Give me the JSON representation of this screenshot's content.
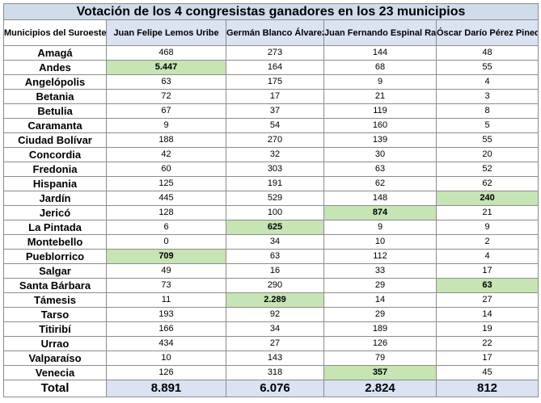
{
  "title": "Votación de los 4 congresistas ganadores en los 23 municipios",
  "header": {
    "municipio_label": "Municipios del Suroeste",
    "candidates": [
      "Juan Felipe Lemos Uribe",
      "Germán Blanco Álvarez",
      "Juan Fernando Espinal Ramírez",
      "Óscar Darío Pérez Pineda"
    ]
  },
  "highlight_color": "#c6e4b4",
  "rows": [
    {
      "municipio": "Amagá",
      "values": [
        "468",
        "273",
        "144",
        "48"
      ],
      "highlight": null
    },
    {
      "municipio": "Andes",
      "values": [
        "5.447",
        "164",
        "68",
        "55"
      ],
      "highlight": 0
    },
    {
      "municipio": "Angelópolis",
      "values": [
        "63",
        "175",
        "9",
        "4"
      ],
      "highlight": null
    },
    {
      "municipio": "Betania",
      "values": [
        "72",
        "17",
        "21",
        "3"
      ],
      "highlight": null
    },
    {
      "municipio": "Betulia",
      "values": [
        "67",
        "37",
        "119",
        "8"
      ],
      "highlight": null
    },
    {
      "municipio": "Caramanta",
      "values": [
        "9",
        "54",
        "160",
        "5"
      ],
      "highlight": null
    },
    {
      "municipio": "Ciudad Bolívar",
      "values": [
        "188",
        "270",
        "139",
        "55"
      ],
      "highlight": null
    },
    {
      "municipio": "Concordia",
      "values": [
        "42",
        "32",
        "30",
        "20"
      ],
      "highlight": null
    },
    {
      "municipio": "Fredonia",
      "values": [
        "60",
        "303",
        "63",
        "52"
      ],
      "highlight": null
    },
    {
      "municipio": "Hispania",
      "values": [
        "125",
        "191",
        "62",
        "62"
      ],
      "highlight": null
    },
    {
      "municipio": "Jardín",
      "values": [
        "445",
        "529",
        "148",
        "240"
      ],
      "highlight": 3
    },
    {
      "municipio": "Jericó",
      "values": [
        "128",
        "100",
        "874",
        "21"
      ],
      "highlight": 2
    },
    {
      "municipio": "La Pintada",
      "values": [
        "6",
        "625",
        "9",
        "9"
      ],
      "highlight": 1
    },
    {
      "municipio": "Montebello",
      "values": [
        "0",
        "34",
        "10",
        "2"
      ],
      "highlight": null
    },
    {
      "municipio": "Pueblorrico",
      "values": [
        "709",
        "63",
        "112",
        "4"
      ],
      "highlight": 0
    },
    {
      "municipio": "Salgar",
      "values": [
        "49",
        "16",
        "33",
        "17"
      ],
      "highlight": null
    },
    {
      "municipio": "Santa Bárbara",
      "values": [
        "73",
        "290",
        "29",
        "63"
      ],
      "highlight": 3
    },
    {
      "municipio": "Támesis",
      "values": [
        "11",
        "2.289",
        "14",
        "27"
      ],
      "highlight": 1
    },
    {
      "municipio": "Tarso",
      "values": [
        "193",
        "92",
        "29",
        "14"
      ],
      "highlight": null
    },
    {
      "municipio": "Titiribí",
      "values": [
        "166",
        "34",
        "189",
        "19"
      ],
      "highlight": null
    },
    {
      "municipio": "Urrao",
      "values": [
        "434",
        "27",
        "126",
        "22"
      ],
      "highlight": null
    },
    {
      "municipio": "Valparaíso",
      "values": [
        "10",
        "143",
        "79",
        "17"
      ],
      "highlight": null
    },
    {
      "municipio": "Venecia",
      "values": [
        "126",
        "318",
        "357",
        "45"
      ],
      "highlight": 2
    }
  ],
  "total": {
    "label": "Total",
    "values": [
      "8.891",
      "6.076",
      "2.824",
      "812"
    ]
  }
}
